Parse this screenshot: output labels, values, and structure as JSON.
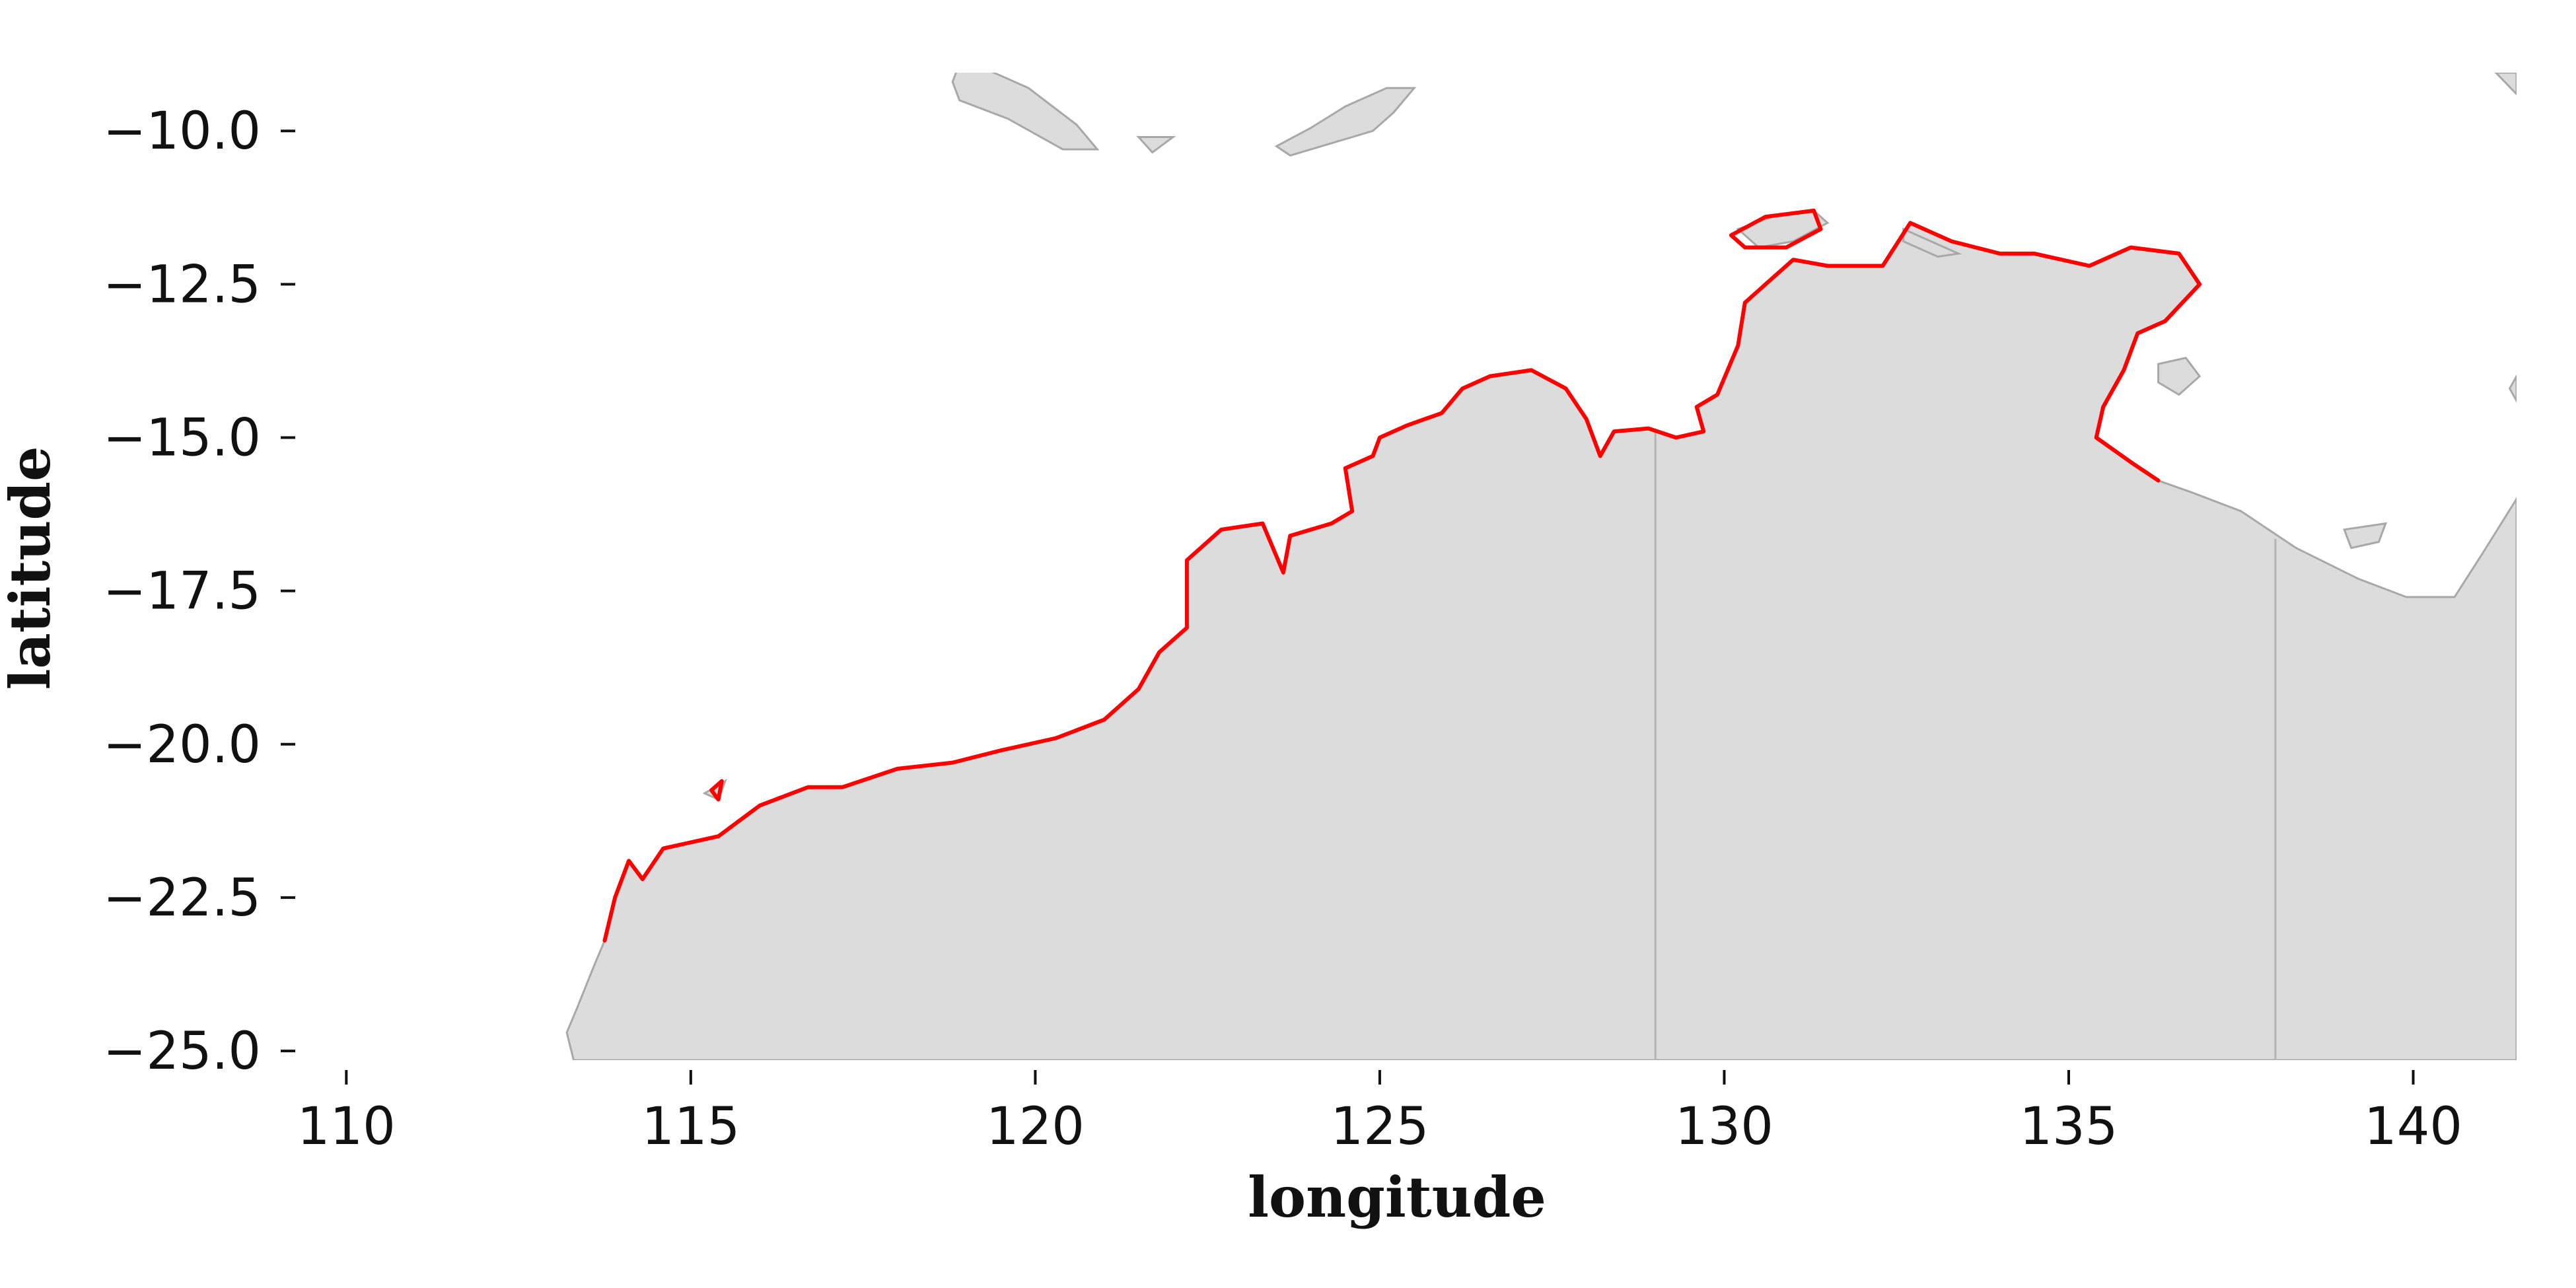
{
  "chart_data": {
    "type": "map",
    "xlabel": "longitude",
    "ylabel": "latitude",
    "xlim": [
      109.0,
      141.5
    ],
    "ylim": [
      -25.15,
      -9.05
    ],
    "x_ticks": [
      110,
      115,
      120,
      125,
      130,
      135,
      140
    ],
    "y_ticks": [
      -10.0,
      -12.5,
      -15.0,
      -17.5,
      -20.0,
      -22.5,
      -25.0
    ],
    "x_tick_labels": [
      "110",
      "115",
      "120",
      "125",
      "130",
      "135",
      "140"
    ],
    "y_tick_labels": [
      "−10.0",
      "−12.5",
      "−15.0",
      "−17.5",
      "−20.0",
      "−22.5",
      "−25.0"
    ],
    "grid": false,
    "colors": {
      "land": "#dcdcdc",
      "land_edge": "#a8a8a8",
      "border": "#b4b4b4",
      "highlight_coast": "#ff0000"
    },
    "mainland": [
      [
        113.3,
        -25.15
      ],
      [
        113.2,
        -24.7
      ],
      [
        113.35,
        -24.3
      ],
      [
        113.6,
        -23.6
      ],
      [
        113.75,
        -23.2
      ],
      [
        113.9,
        -22.5
      ],
      [
        114.1,
        -21.9
      ],
      [
        114.3,
        -22.2
      ],
      [
        114.6,
        -21.7
      ],
      [
        115.4,
        -21.5
      ],
      [
        116.0,
        -21.0
      ],
      [
        116.7,
        -20.7
      ],
      [
        117.2,
        -20.7
      ],
      [
        118.0,
        -20.4
      ],
      [
        118.8,
        -20.3
      ],
      [
        119.5,
        -20.1
      ],
      [
        120.3,
        -19.9
      ],
      [
        121.0,
        -19.6
      ],
      [
        121.5,
        -19.1
      ],
      [
        121.8,
        -18.5
      ],
      [
        122.2,
        -18.1
      ],
      [
        122.2,
        -17.7
      ],
      [
        122.2,
        -17.0
      ],
      [
        122.7,
        -16.5
      ],
      [
        123.3,
        -16.4
      ],
      [
        123.6,
        -17.2
      ],
      [
        123.7,
        -16.6
      ],
      [
        124.3,
        -16.4
      ],
      [
        124.6,
        -16.2
      ],
      [
        124.5,
        -15.5
      ],
      [
        124.9,
        -15.3
      ],
      [
        125.0,
        -15.0
      ],
      [
        125.4,
        -14.8
      ],
      [
        125.9,
        -14.6
      ],
      [
        126.2,
        -14.2
      ],
      [
        126.6,
        -14.0
      ],
      [
        127.2,
        -13.9
      ],
      [
        127.7,
        -14.2
      ],
      [
        128.0,
        -14.7
      ],
      [
        128.2,
        -15.3
      ],
      [
        128.4,
        -14.9
      ],
      [
        128.9,
        -14.85
      ],
      [
        129.3,
        -15.0
      ],
      [
        129.7,
        -14.9
      ],
      [
        129.6,
        -14.5
      ],
      [
        129.9,
        -14.3
      ],
      [
        130.2,
        -13.5
      ],
      [
        130.3,
        -12.8
      ],
      [
        130.6,
        -12.5
      ],
      [
        131.0,
        -12.1
      ],
      [
        131.5,
        -12.2
      ],
      [
        132.3,
        -12.2
      ],
      [
        132.7,
        -11.5
      ],
      [
        133.3,
        -11.8
      ],
      [
        134.0,
        -12.0
      ],
      [
        134.5,
        -12.0
      ],
      [
        135.3,
        -12.2
      ],
      [
        135.9,
        -11.9
      ],
      [
        136.6,
        -12.0
      ],
      [
        136.9,
        -12.5
      ],
      [
        136.4,
        -13.1
      ],
      [
        136.0,
        -13.3
      ],
      [
        135.8,
        -13.9
      ],
      [
        135.5,
        -14.5
      ],
      [
        135.4,
        -15.0
      ],
      [
        135.9,
        -15.4
      ],
      [
        136.3,
        -15.7
      ],
      [
        136.8,
        -15.9
      ],
      [
        137.5,
        -16.2
      ],
      [
        138.3,
        -16.8
      ],
      [
        139.2,
        -17.3
      ],
      [
        139.9,
        -17.6
      ],
      [
        140.6,
        -17.6
      ],
      [
        141.0,
        -16.9
      ],
      [
        141.5,
        -16.0
      ],
      [
        141.5,
        -25.15
      ]
    ],
    "islands": [
      [
        [
          123.7,
          -10.4
        ],
        [
          124.3,
          -10.2
        ],
        [
          124.9,
          -10.0
        ],
        [
          125.2,
          -9.7
        ],
        [
          125.5,
          -9.3
        ],
        [
          125.1,
          -9.3
        ],
        [
          124.5,
          -9.6
        ],
        [
          124.0,
          -9.95
        ],
        [
          123.5,
          -10.25
        ]
      ],
      [
        [
          118.9,
          -8.9
        ],
        [
          119.3,
          -9.0
        ],
        [
          119.9,
          -9.3
        ],
        [
          120.6,
          -9.9
        ],
        [
          120.9,
          -10.3
        ],
        [
          120.4,
          -10.3
        ],
        [
          119.6,
          -9.8
        ],
        [
          118.9,
          -9.5
        ],
        [
          118.8,
          -9.2
        ]
      ],
      [
        [
          132.6,
          -11.6
        ],
        [
          133.0,
          -11.8
        ],
        [
          133.4,
          -12.0
        ],
        [
          133.1,
          -12.05
        ],
        [
          132.6,
          -11.8
        ]
      ],
      [
        [
          130.2,
          -11.6
        ],
        [
          130.7,
          -11.4
        ],
        [
          131.3,
          -11.3
        ],
        [
          131.5,
          -11.5
        ],
        [
          131.0,
          -11.8
        ],
        [
          130.5,
          -11.9
        ]
      ],
      [
        [
          136.3,
          -13.8
        ],
        [
          136.7,
          -13.7
        ],
        [
          136.9,
          -14.0
        ],
        [
          136.6,
          -14.3
        ],
        [
          136.3,
          -14.1
        ]
      ],
      [
        [
          139.0,
          -16.5
        ],
        [
          139.6,
          -16.4
        ],
        [
          139.5,
          -16.7
        ],
        [
          139.1,
          -16.8
        ]
      ],
      [
        [
          141.2,
          -9.05
        ],
        [
          141.5,
          -9.05
        ],
        [
          141.5,
          -9.4
        ]
      ],
      [
        [
          141.4,
          -14.2
        ],
        [
          141.5,
          -14.0
        ],
        [
          141.5,
          -14.4
        ]
      ],
      [
        [
          121.5,
          -10.1
        ],
        [
          122.0,
          -10.1
        ],
        [
          121.7,
          -10.35
        ]
      ],
      [
        [
          115.2,
          -20.8
        ],
        [
          115.5,
          -20.6
        ],
        [
          115.4,
          -20.9
        ]
      ]
    ],
    "borders": [
      [
        [
          129.0,
          -14.85
        ],
        [
          129.0,
          -25.15
        ]
      ],
      [
        [
          138.0,
          -16.65
        ],
        [
          138.0,
          -25.15
        ]
      ]
    ],
    "highlight_coast": [
      [
        113.75,
        -23.2
      ],
      [
        113.9,
        -22.5
      ],
      [
        114.1,
        -21.9
      ],
      [
        114.3,
        -22.2
      ],
      [
        114.6,
        -21.7
      ],
      [
        115.4,
        -21.5
      ],
      [
        116.0,
        -21.0
      ],
      [
        116.7,
        -20.7
      ],
      [
        117.2,
        -20.7
      ],
      [
        118.0,
        -20.4
      ],
      [
        118.8,
        -20.3
      ],
      [
        119.5,
        -20.1
      ],
      [
        120.3,
        -19.9
      ],
      [
        121.0,
        -19.6
      ],
      [
        121.5,
        -19.1
      ],
      [
        121.8,
        -18.5
      ],
      [
        122.2,
        -18.1
      ],
      [
        122.2,
        -17.7
      ],
      [
        122.2,
        -17.0
      ],
      [
        122.7,
        -16.5
      ],
      [
        123.3,
        -16.4
      ],
      [
        123.6,
        -17.2
      ],
      [
        123.7,
        -16.6
      ],
      [
        124.3,
        -16.4
      ],
      [
        124.6,
        -16.2
      ],
      [
        124.5,
        -15.5
      ],
      [
        124.9,
        -15.3
      ],
      [
        125.0,
        -15.0
      ],
      [
        125.4,
        -14.8
      ],
      [
        125.9,
        -14.6
      ],
      [
        126.2,
        -14.2
      ],
      [
        126.6,
        -14.0
      ],
      [
        127.2,
        -13.9
      ],
      [
        127.7,
        -14.2
      ],
      [
        128.0,
        -14.7
      ],
      [
        128.2,
        -15.3
      ],
      [
        128.4,
        -14.9
      ],
      [
        128.9,
        -14.85
      ],
      [
        129.3,
        -15.0
      ],
      [
        129.7,
        -14.9
      ],
      [
        129.6,
        -14.5
      ],
      [
        129.9,
        -14.3
      ],
      [
        130.2,
        -13.5
      ],
      [
        130.3,
        -12.8
      ],
      [
        130.6,
        -12.5
      ],
      [
        131.0,
        -12.1
      ],
      [
        131.5,
        -12.2
      ],
      [
        132.3,
        -12.2
      ],
      [
        132.7,
        -11.5
      ],
      [
        133.3,
        -11.8
      ],
      [
        134.0,
        -12.0
      ],
      [
        134.5,
        -12.0
      ],
      [
        135.3,
        -12.2
      ],
      [
        135.9,
        -11.9
      ],
      [
        136.6,
        -12.0
      ],
      [
        136.9,
        -12.5
      ],
      [
        136.4,
        -13.1
      ],
      [
        136.0,
        -13.3
      ],
      [
        135.8,
        -13.9
      ],
      [
        135.5,
        -14.5
      ],
      [
        135.4,
        -15.0
      ],
      [
        135.9,
        -15.4
      ],
      [
        136.3,
        -15.7
      ]
    ],
    "highlight_islands": [
      [
        [
          130.1,
          -11.7
        ],
        [
          130.6,
          -11.4
        ],
        [
          131.3,
          -11.3
        ],
        [
          131.4,
          -11.6
        ],
        [
          130.9,
          -11.9
        ],
        [
          130.3,
          -11.9
        ]
      ],
      [
        [
          115.3,
          -20.75
        ],
        [
          115.45,
          -20.6
        ],
        [
          115.4,
          -20.9
        ]
      ]
    ]
  }
}
